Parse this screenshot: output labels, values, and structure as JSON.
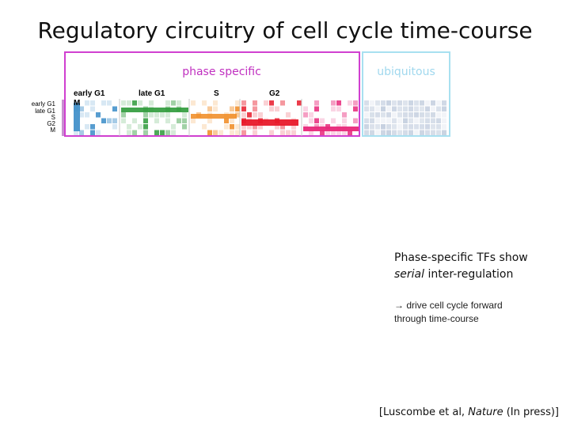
{
  "title": "Regulatory circuitry of cell cycle time-course",
  "boxes": {
    "phase_specific_label": "phase specific",
    "ubiquitous_label": "ubiquitous"
  },
  "column_headers": [
    "early G1",
    "late G1",
    "S",
    "G2",
    "M"
  ],
  "row_headers": [
    "early G1",
    "late G1",
    "S",
    "G2",
    "M"
  ],
  "colors": {
    "phase_box": "#d040d0",
    "ubiquitous_box": "#a8e0f0",
    "early_g1": "#3a8cc8",
    "late_g1": "#2e9a3a",
    "s": "#f08a20",
    "g2": "#e81a2a",
    "m": "#e8287a",
    "ubiquitous": "#a8b8d0"
  },
  "text": {
    "line1": "Phase-specific TFs show",
    "line2_italic": "serial",
    "line2_rest": " inter-regulation",
    "arrow": "→",
    "sub1": " drive cell cycle forward",
    "sub2": "through time-course"
  },
  "citation": {
    "prefix": "[Luscombe et al, ",
    "journal": "Nature",
    "suffix": " (In press)]"
  }
}
